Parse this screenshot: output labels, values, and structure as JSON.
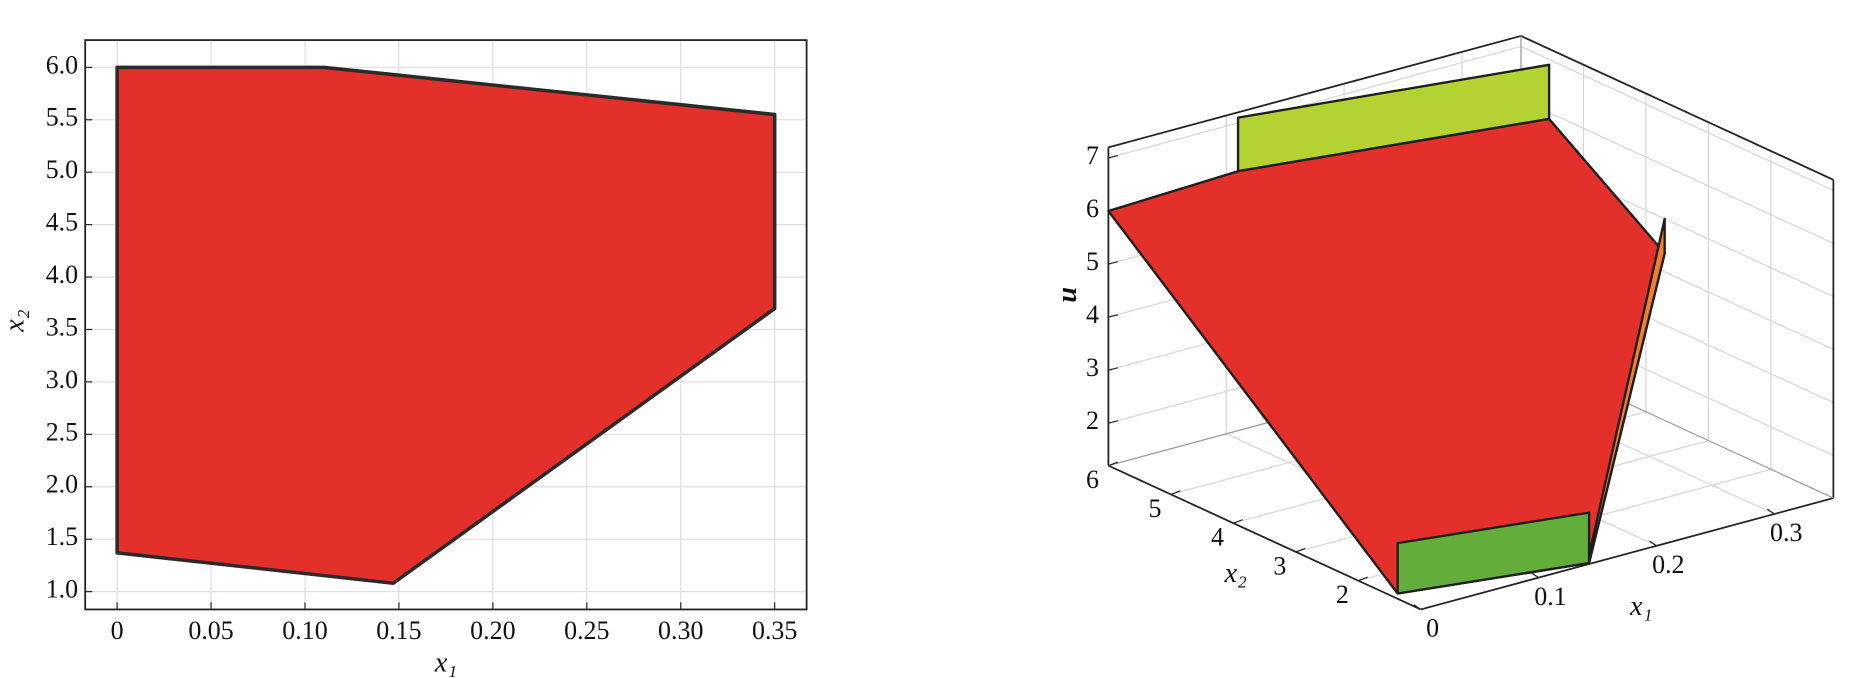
{
  "chart_data": [
    {
      "type": "polygon",
      "x_label": "x₁",
      "y_label": "x₂",
      "x": [
        0,
        0.11,
        0.35,
        0.35,
        0.147,
        0
      ],
      "y": [
        6,
        6,
        5.55,
        3.7,
        1.08,
        1.37
      ],
      "color": "#e3302b",
      "xlim": [
        -0.017,
        0.367
      ],
      "ylim": [
        0.83,
        6.26
      ],
      "xticks": [
        0,
        0.05,
        {
          "value": 0.1,
          "label": "0.10"
        },
        0.15,
        {
          "value": 0.2,
          "label": "0.20"
        },
        0.25,
        {
          "value": 0.3,
          "label": "0.30"
        },
        0.35
      ],
      "yticks": [
        {
          "value": 1,
          "label": "1.0"
        },
        1.5,
        {
          "value": 2,
          "label": "2.0"
        },
        2.5,
        {
          "value": 3,
          "label": "3.0"
        },
        3.5,
        {
          "value": 4,
          "label": "4.0"
        },
        4.5,
        {
          "value": 5,
          "label": "5.0"
        },
        5.5,
        {
          "value": 6,
          "label": "6.0"
        }
      ],
      "grid": true
    },
    {
      "type": "surface3d",
      "x_label": "x₁",
      "y_label": "x₂",
      "z_label": "u",
      "xlim": [
        0,
        0.35
      ],
      "ylim": [
        1,
        6
      ],
      "zlim": [
        1.2,
        7.2
      ],
      "xticks": [
        0,
        0.1,
        0.2,
        0.3
      ],
      "yticks": [
        2,
        3,
        4,
        5,
        6
      ],
      "zticks": [
        2,
        3,
        4,
        5,
        6,
        7
      ],
      "grid": true,
      "surfaces": [
        {
          "color": "#b5d233",
          "x": [
            0.11,
            0.35,
            0.35,
            0.11
          ],
          "y": [
            6,
            5.55,
            5.55,
            6
          ],
          "z": [
            6.09,
            5.88,
            6.9,
            7.1
          ]
        },
        {
          "color": "#e3302b",
          "x": [
            0,
            0.11,
            0.35,
            0.35,
            0.147,
            0
          ],
          "y": [
            6,
            6,
            5.55,
            3.7,
            1.08,
            1.37
          ],
          "z": [
            6,
            6.09,
            5.88,
            4.35,
            1.15,
            1.3
          ]
        },
        {
          "color": "#f07f2e",
          "x": [
            0.147,
            0.35,
            0.35,
            0.147
          ],
          "y": [
            1.08,
            3.7,
            3.7,
            1.08
          ],
          "z": [
            1.15,
            4.35,
            5.0,
            1.3
          ]
        },
        {
          "color": "#63ad3a",
          "x": [
            0,
            0.147,
            0.147,
            0
          ],
          "y": [
            1.37,
            1.08,
            1.08,
            1.37
          ],
          "z": [
            1.3,
            1.15,
            2.1,
            2.25
          ]
        }
      ]
    }
  ]
}
